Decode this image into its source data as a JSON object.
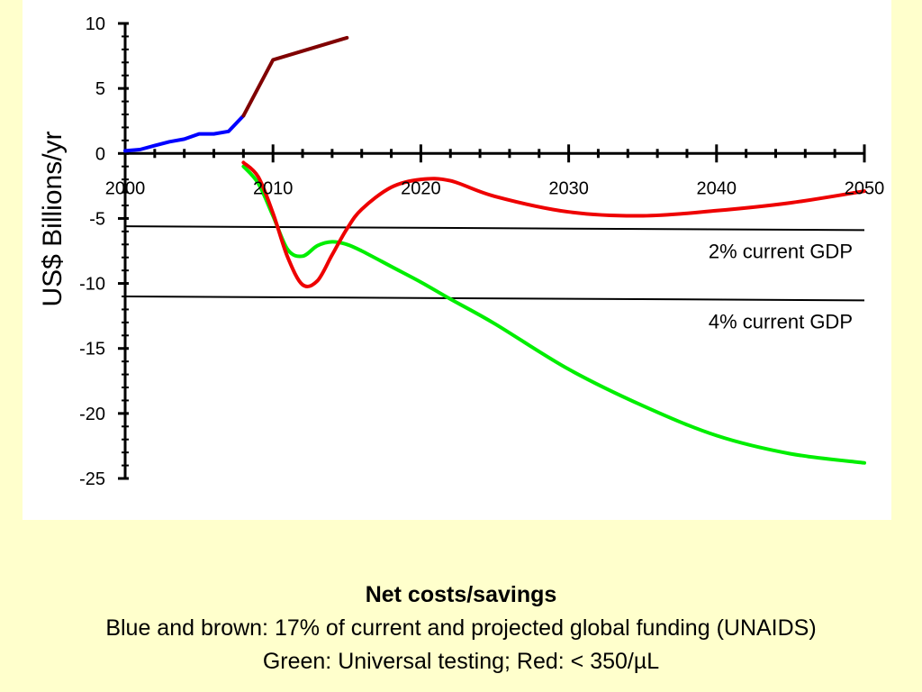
{
  "chart_data": {
    "type": "line",
    "title": "",
    "xlabel": "",
    "ylabel": "US$ Billions/yr",
    "xlim": [
      2000,
      2050
    ],
    "ylim": [
      -25,
      10
    ],
    "x_ticks": [
      2000,
      2010,
      2020,
      2030,
      2040,
      2050
    ],
    "y_ticks": [
      10,
      5,
      0,
      -5,
      -10,
      -15,
      -20,
      -25
    ],
    "grid": false,
    "legend": "none",
    "series": [
      {
        "key": "blue",
        "color": "#0000FF",
        "points": [
          [
            2000,
            0.2
          ],
          [
            2001,
            0.3
          ],
          [
            2002,
            0.6
          ],
          [
            2003,
            0.9
          ],
          [
            2004,
            1.1
          ],
          [
            2005,
            1.5
          ],
          [
            2006,
            1.5
          ],
          [
            2007,
            1.7
          ],
          [
            2008,
            2.9
          ]
        ]
      },
      {
        "key": "brown",
        "color": "#800000",
        "points": [
          [
            2008,
            2.9
          ],
          [
            2010,
            7.2
          ],
          [
            2015,
            8.9
          ]
        ]
      },
      {
        "key": "green",
        "color": "#00EE00",
        "points": [
          [
            2008,
            -1.0
          ],
          [
            2009,
            -2.3
          ],
          [
            2010,
            -4.8
          ],
          [
            2011,
            -7.4
          ],
          [
            2012,
            -7.9
          ],
          [
            2013,
            -7.1
          ],
          [
            2014,
            -6.8
          ],
          [
            2015,
            -7.0
          ],
          [
            2016,
            -7.5
          ],
          [
            2018,
            -8.7
          ],
          [
            2020,
            -9.9
          ],
          [
            2022,
            -11.2
          ],
          [
            2025,
            -13.1
          ],
          [
            2030,
            -16.6
          ],
          [
            2035,
            -19.4
          ],
          [
            2040,
            -21.7
          ],
          [
            2045,
            -23.1
          ],
          [
            2050,
            -23.8
          ]
        ]
      },
      {
        "key": "red",
        "color": "#EE0000",
        "points": [
          [
            2008,
            -0.7
          ],
          [
            2009,
            -1.8
          ],
          [
            2010,
            -4.6
          ],
          [
            2011,
            -8.0
          ],
          [
            2012,
            -10.1
          ],
          [
            2013,
            -9.8
          ],
          [
            2014,
            -7.8
          ],
          [
            2015,
            -5.8
          ],
          [
            2016,
            -4.3
          ],
          [
            2018,
            -2.6
          ],
          [
            2020,
            -2.0
          ],
          [
            2022,
            -2.1
          ],
          [
            2025,
            -3.3
          ],
          [
            2030,
            -4.5
          ],
          [
            2035,
            -4.8
          ],
          [
            2040,
            -4.4
          ],
          [
            2045,
            -3.8
          ],
          [
            2050,
            -2.9
          ]
        ]
      }
    ],
    "reference_lines": [
      {
        "label": "2% current GDP",
        "points": [
          [
            2000,
            -5.6
          ],
          [
            2050,
            -5.9
          ]
        ]
      },
      {
        "label": "4% current GDP",
        "points": [
          [
            2000,
            -11.0
          ],
          [
            2050,
            -11.3
          ]
        ]
      }
    ]
  },
  "caption": {
    "title": "Net costs/savings",
    "line1": "Blue and brown: 17% of current and projected global funding (UNAIDS)",
    "line2": "Green: Universal testing; Red: < 350/µL"
  }
}
